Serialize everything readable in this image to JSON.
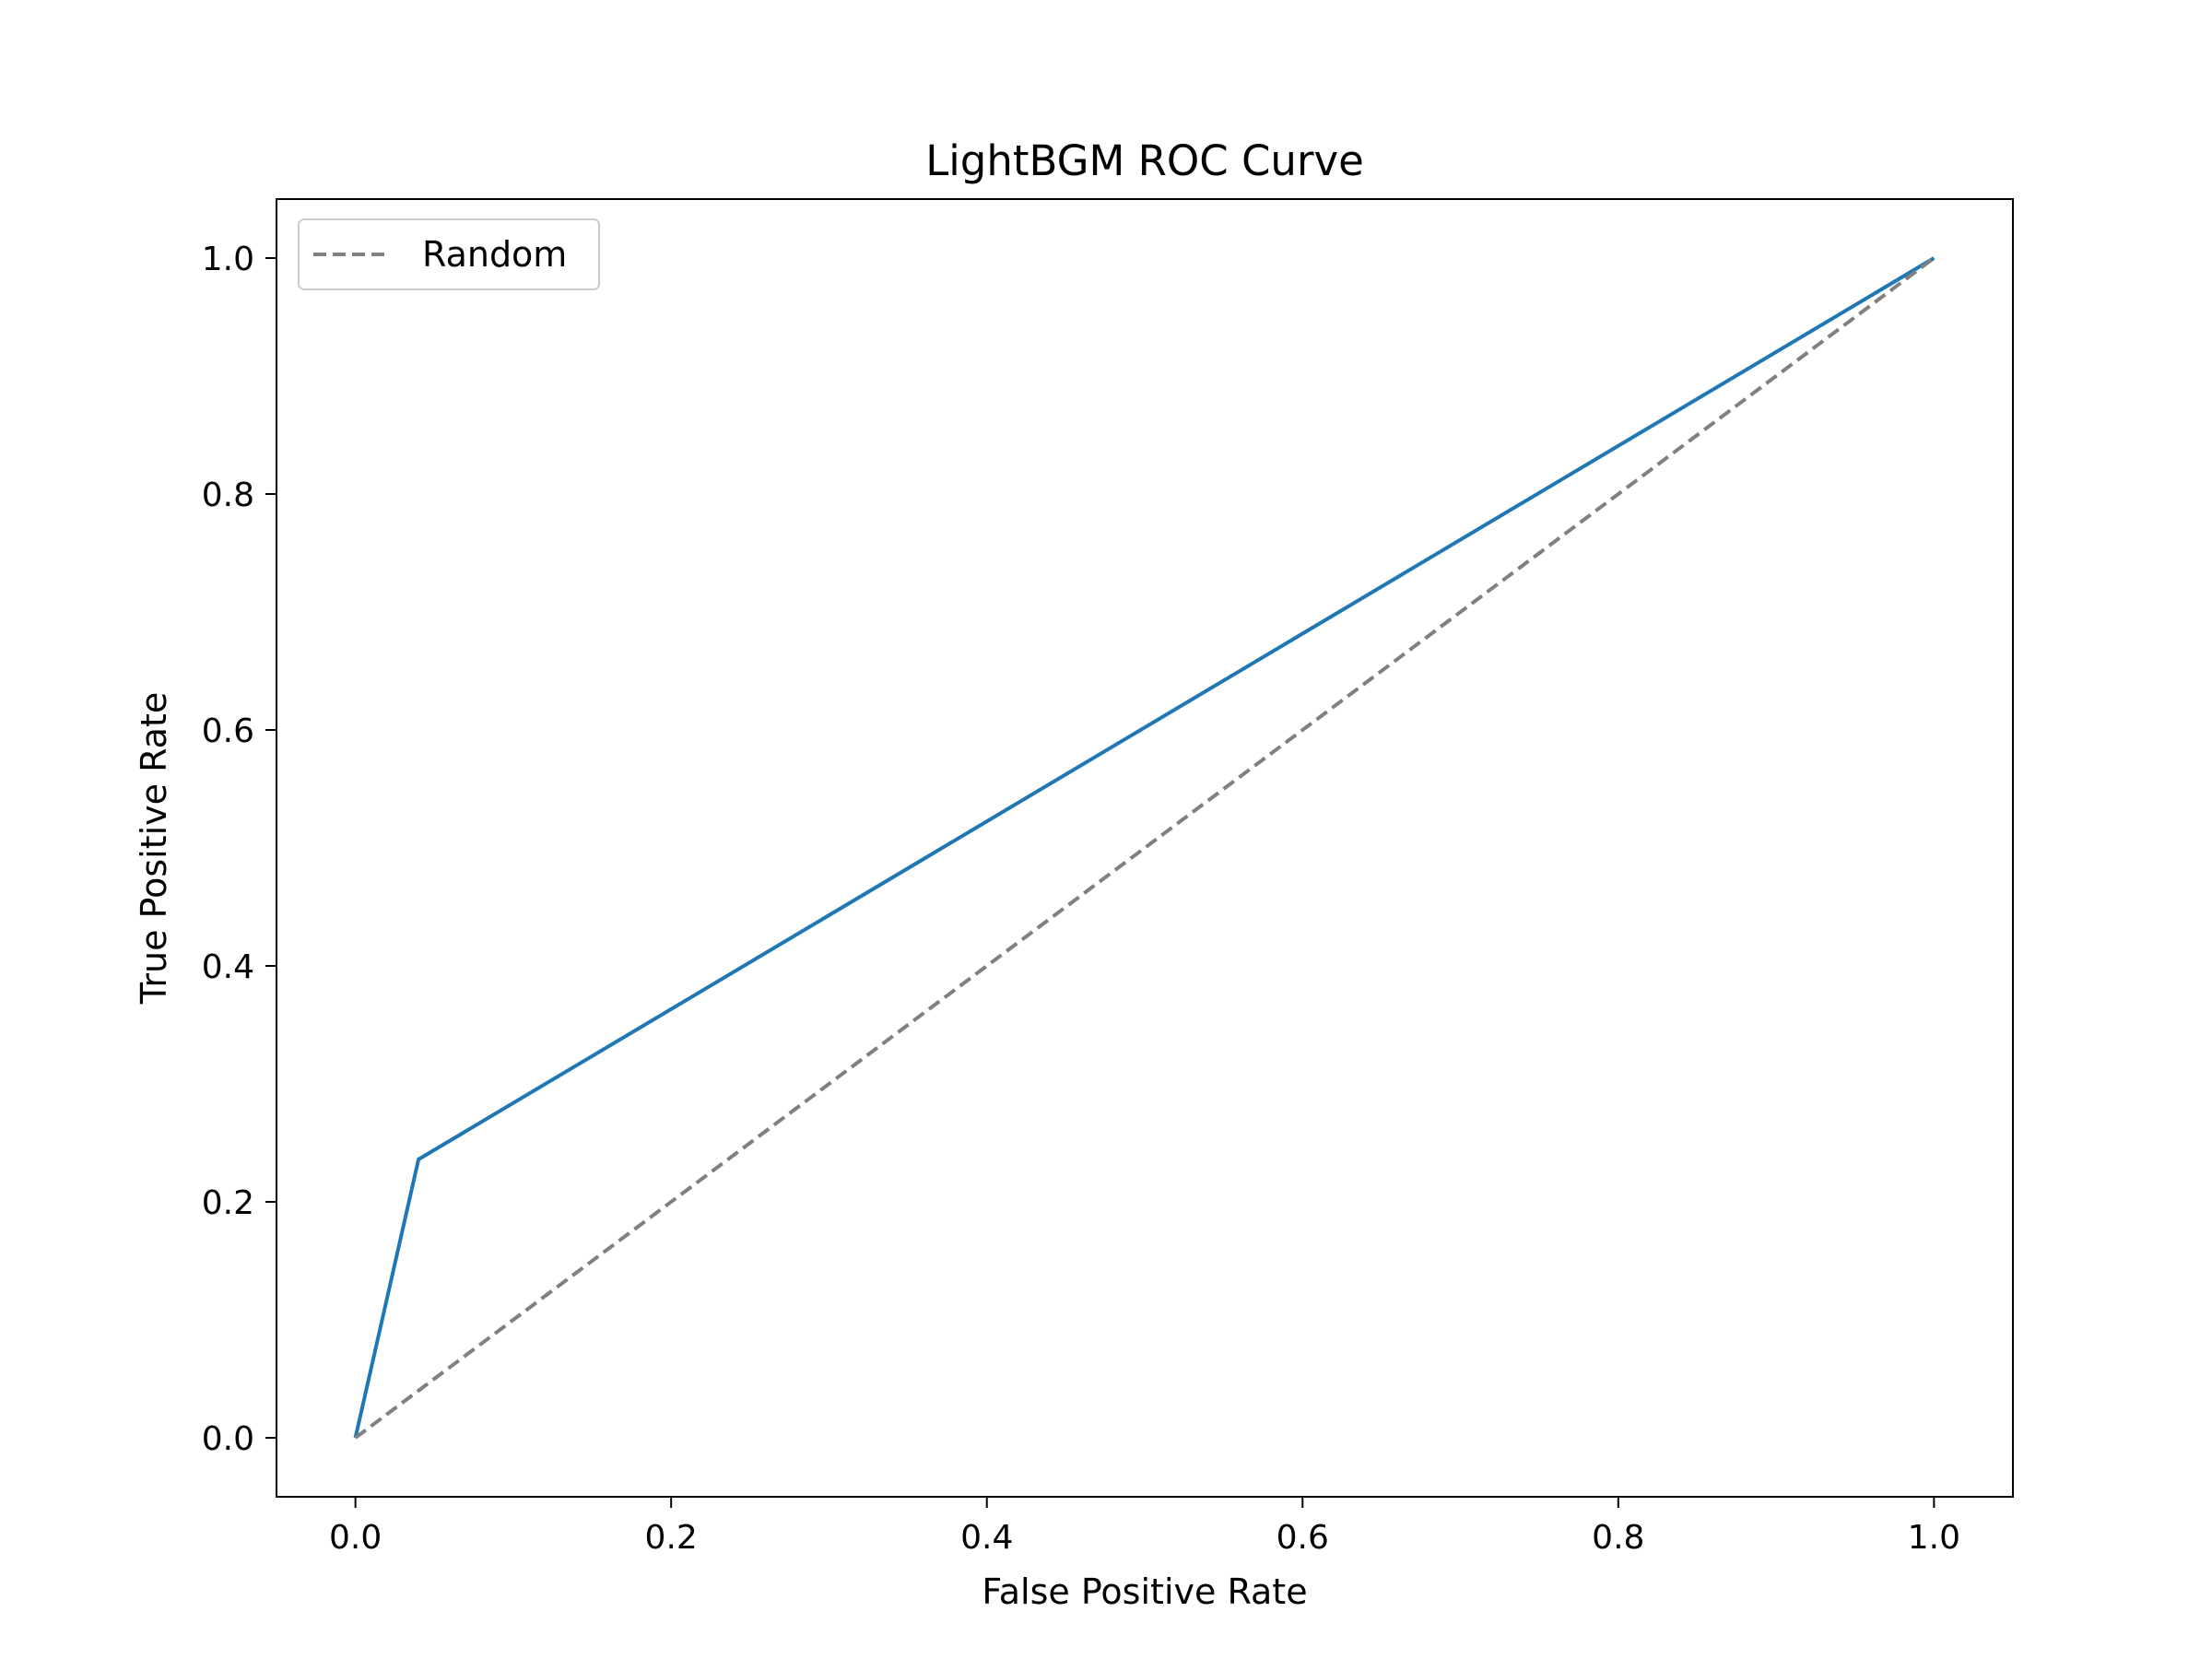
{
  "chart_data": {
    "type": "line",
    "title": "LightBGM ROC Curve",
    "xlabel": "False Positive Rate",
    "ylabel": "True Positive Rate",
    "xlim": [
      -0.05,
      1.05
    ],
    "ylim": [
      -0.05,
      1.05
    ],
    "x_ticks": [
      "0.0",
      "0.2",
      "0.4",
      "0.6",
      "0.8",
      "1.0"
    ],
    "y_ticks": [
      "0.0",
      "0.2",
      "0.4",
      "0.6",
      "0.8",
      "1.0"
    ],
    "grid": false,
    "legend_position": "upper-left",
    "series": [
      {
        "color": "#1f77b4",
        "style": "solid",
        "x": [
          0.0,
          0.04,
          1.0
        ],
        "y": [
          0.0,
          0.236,
          1.0
        ]
      },
      {
        "name": "Random",
        "color": "#808080",
        "style": "dashed",
        "x": [
          0.0,
          1.0
        ],
        "y": [
          0.0,
          1.0
        ]
      }
    ]
  }
}
